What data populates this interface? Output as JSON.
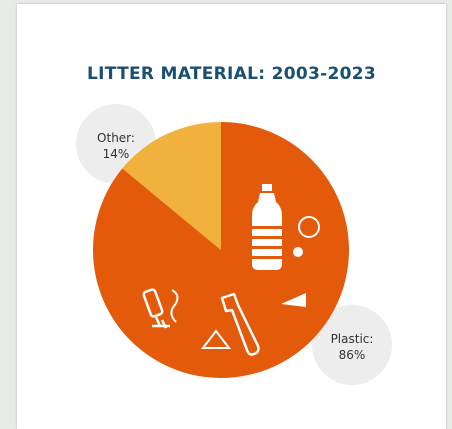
{
  "chart_data": {
    "type": "pie",
    "title": "LITTER MATERIAL: 2003-2023",
    "slices": [
      {
        "label": "Plastic",
        "value": 86,
        "value_text": "86%",
        "color": "#e35a0a"
      },
      {
        "label": "Other",
        "value": 14,
        "value_text": "14%",
        "color": "#f0b23c"
      }
    ]
  },
  "colors": {
    "title": "#1b4f72",
    "label_bubble": "#ededed",
    "icon": "#ffffff"
  },
  "icons": [
    "bottle-icon",
    "circle-icon",
    "dot-icon",
    "triangle-icon",
    "straw-icon",
    "lighter-icon"
  ]
}
